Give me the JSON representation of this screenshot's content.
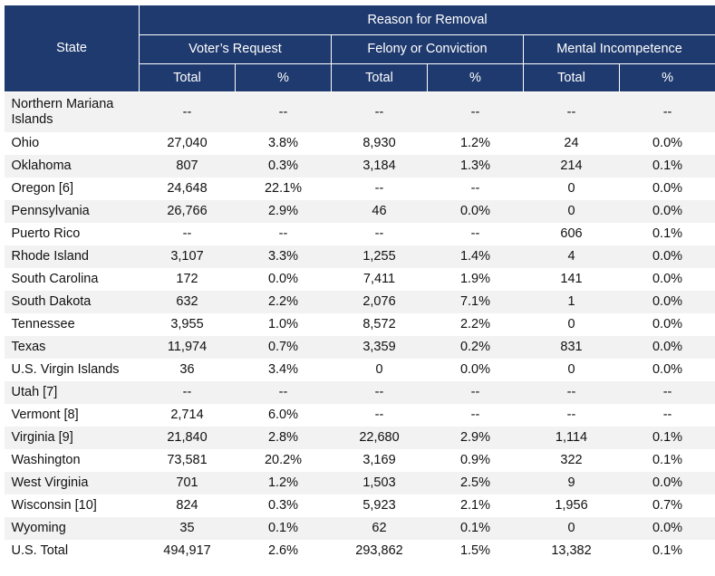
{
  "header": {
    "state": "State",
    "reason": "Reason for Removal",
    "groups": [
      "Voter’s Request",
      "Felony or Conviction",
      "Mental Incompetence"
    ],
    "sub": [
      "Total",
      "%",
      "Total",
      "%",
      "Total",
      "%"
    ]
  },
  "rows": [
    {
      "state": "Northern Mariana Islands",
      "cells": [
        "--",
        "--",
        "--",
        "--",
        "--",
        "--"
      ]
    },
    {
      "state": "Ohio",
      "cells": [
        "27,040",
        "3.8%",
        "8,930",
        "1.2%",
        "24",
        "0.0%"
      ]
    },
    {
      "state": "Oklahoma",
      "cells": [
        "807",
        "0.3%",
        "3,184",
        "1.3%",
        "214",
        "0.1%"
      ]
    },
    {
      "state": "Oregon [6]",
      "cells": [
        "24,648",
        "22.1%",
        "--",
        "--",
        "0",
        "0.0%"
      ]
    },
    {
      "state": "Pennsylvania",
      "cells": [
        "26,766",
        "2.9%",
        "46",
        "0.0%",
        "0",
        "0.0%"
      ]
    },
    {
      "state": "Puerto Rico",
      "cells": [
        "--",
        "--",
        "--",
        "--",
        "606",
        "0.1%"
      ]
    },
    {
      "state": "Rhode Island",
      "cells": [
        "3,107",
        "3.3%",
        "1,255",
        "1.4%",
        "4",
        "0.0%"
      ]
    },
    {
      "state": "South Carolina",
      "cells": [
        "172",
        "0.0%",
        "7,411",
        "1.9%",
        "141",
        "0.0%"
      ]
    },
    {
      "state": "South Dakota",
      "cells": [
        "632",
        "2.2%",
        "2,076",
        "7.1%",
        "1",
        "0.0%"
      ]
    },
    {
      "state": "Tennessee",
      "cells": [
        "3,955",
        "1.0%",
        "8,572",
        "2.2%",
        "0",
        "0.0%"
      ]
    },
    {
      "state": "Texas",
      "cells": [
        "11,974",
        "0.7%",
        "3,359",
        "0.2%",
        "831",
        "0.0%"
      ]
    },
    {
      "state": "U.S. Virgin Islands",
      "cells": [
        "36",
        "3.4%",
        "0",
        "0.0%",
        "0",
        "0.0%"
      ]
    },
    {
      "state": "Utah [7]",
      "cells": [
        "--",
        "--",
        "--",
        "--",
        "--",
        "--"
      ]
    },
    {
      "state": "Vermont [8]",
      "cells": [
        "2,714",
        "6.0%",
        "--",
        "--",
        "--",
        "--"
      ]
    },
    {
      "state": "Virginia [9]",
      "cells": [
        "21,840",
        "2.8%",
        "22,680",
        "2.9%",
        "1,114",
        "0.1%"
      ]
    },
    {
      "state": "Washington",
      "cells": [
        "73,581",
        "20.2%",
        "3,169",
        "0.9%",
        "322",
        "0.1%"
      ]
    },
    {
      "state": "West Virginia",
      "cells": [
        "701",
        "1.2%",
        "1,503",
        "2.5%",
        "9",
        "0.0%"
      ]
    },
    {
      "state": "Wisconsin [10]",
      "cells": [
        "824",
        "0.3%",
        "5,923",
        "2.1%",
        "1,956",
        "0.7%"
      ]
    },
    {
      "state": "Wyoming",
      "cells": [
        "35",
        "0.1%",
        "62",
        "0.1%",
        "0",
        "0.0%"
      ]
    },
    {
      "state": "U.S. Total",
      "cells": [
        "494,917",
        "2.6%",
        "293,862",
        "1.5%",
        "13,382",
        "0.1%"
      ]
    }
  ]
}
